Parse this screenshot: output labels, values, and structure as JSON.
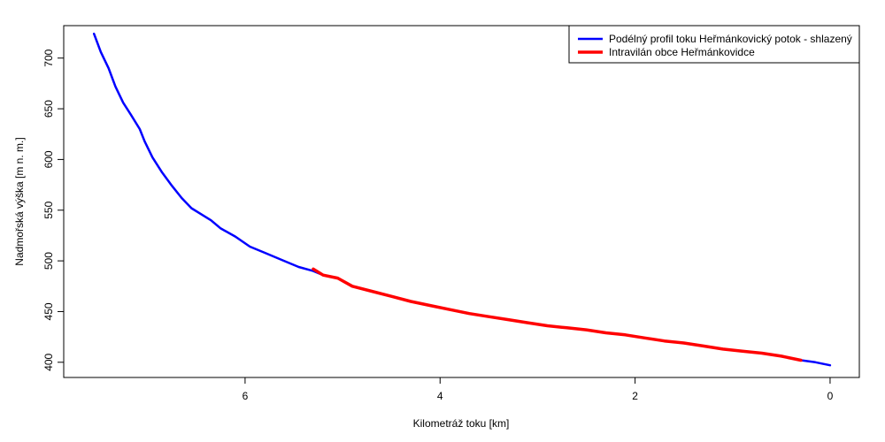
{
  "chart_data": {
    "type": "line",
    "title": "",
    "xlabel": "Kilometráž toku [km]",
    "ylabel": "Nadmořská výška [m n. m.]",
    "xlim": [
      7.86,
      -0.3
    ],
    "ylim": [
      385,
      732
    ],
    "x_ticks": [
      6,
      4,
      2,
      0
    ],
    "y_ticks": [
      400,
      450,
      500,
      550,
      600,
      650,
      700
    ],
    "grid": false,
    "legend_position": "top-right",
    "series": [
      {
        "name": "Podélný profil toku Heřmánkovický potok - shlazený",
        "color": "#0000ff",
        "x": [
          7.55,
          7.48,
          7.4,
          7.33,
          7.25,
          7.17,
          7.08,
          7.03,
          6.95,
          6.85,
          6.75,
          6.65,
          6.55,
          6.45,
          6.35,
          6.25,
          6.1,
          5.95,
          5.8,
          5.6,
          5.45,
          5.3,
          5.2,
          5.05,
          4.9,
          4.7,
          4.5,
          4.3,
          4.1,
          3.9,
          3.7,
          3.5,
          3.3,
          3.1,
          2.9,
          2.7,
          2.5,
          2.3,
          2.1,
          1.9,
          1.7,
          1.5,
          1.3,
          1.1,
          0.9,
          0.7,
          0.5,
          0.3,
          0.15,
          0.0
        ],
        "y": [
          724,
          706,
          690,
          672,
          656,
          644,
          630,
          618,
          602,
          587,
          574,
          562,
          552,
          546,
          540,
          532,
          524,
          514,
          508,
          500,
          494,
          490,
          486,
          483,
          475,
          470,
          465,
          460,
          456,
          452,
          448,
          445,
          442,
          439,
          436,
          434,
          432,
          429,
          427,
          424,
          421,
          419,
          416,
          413,
          411,
          409,
          406,
          402,
          400,
          397
        ]
      },
      {
        "name": "Intravilán obce Heřmánkovidce",
        "color": "#ff0000",
        "x": [
          5.3,
          5.2,
          5.05,
          4.9,
          4.7,
          4.5,
          4.3,
          4.1,
          3.9,
          3.7,
          3.5,
          3.3,
          3.1,
          2.9,
          2.7,
          2.5,
          2.3,
          2.1,
          1.9,
          1.7,
          1.5,
          1.3,
          1.1,
          0.9,
          0.7,
          0.5,
          0.3
        ],
        "y": [
          492,
          486,
          483,
          475,
          470,
          465,
          460,
          456,
          452,
          448,
          445,
          442,
          439,
          436,
          434,
          432,
          429,
          427,
          424,
          421,
          419,
          416,
          413,
          411,
          409,
          406,
          402
        ]
      }
    ]
  }
}
